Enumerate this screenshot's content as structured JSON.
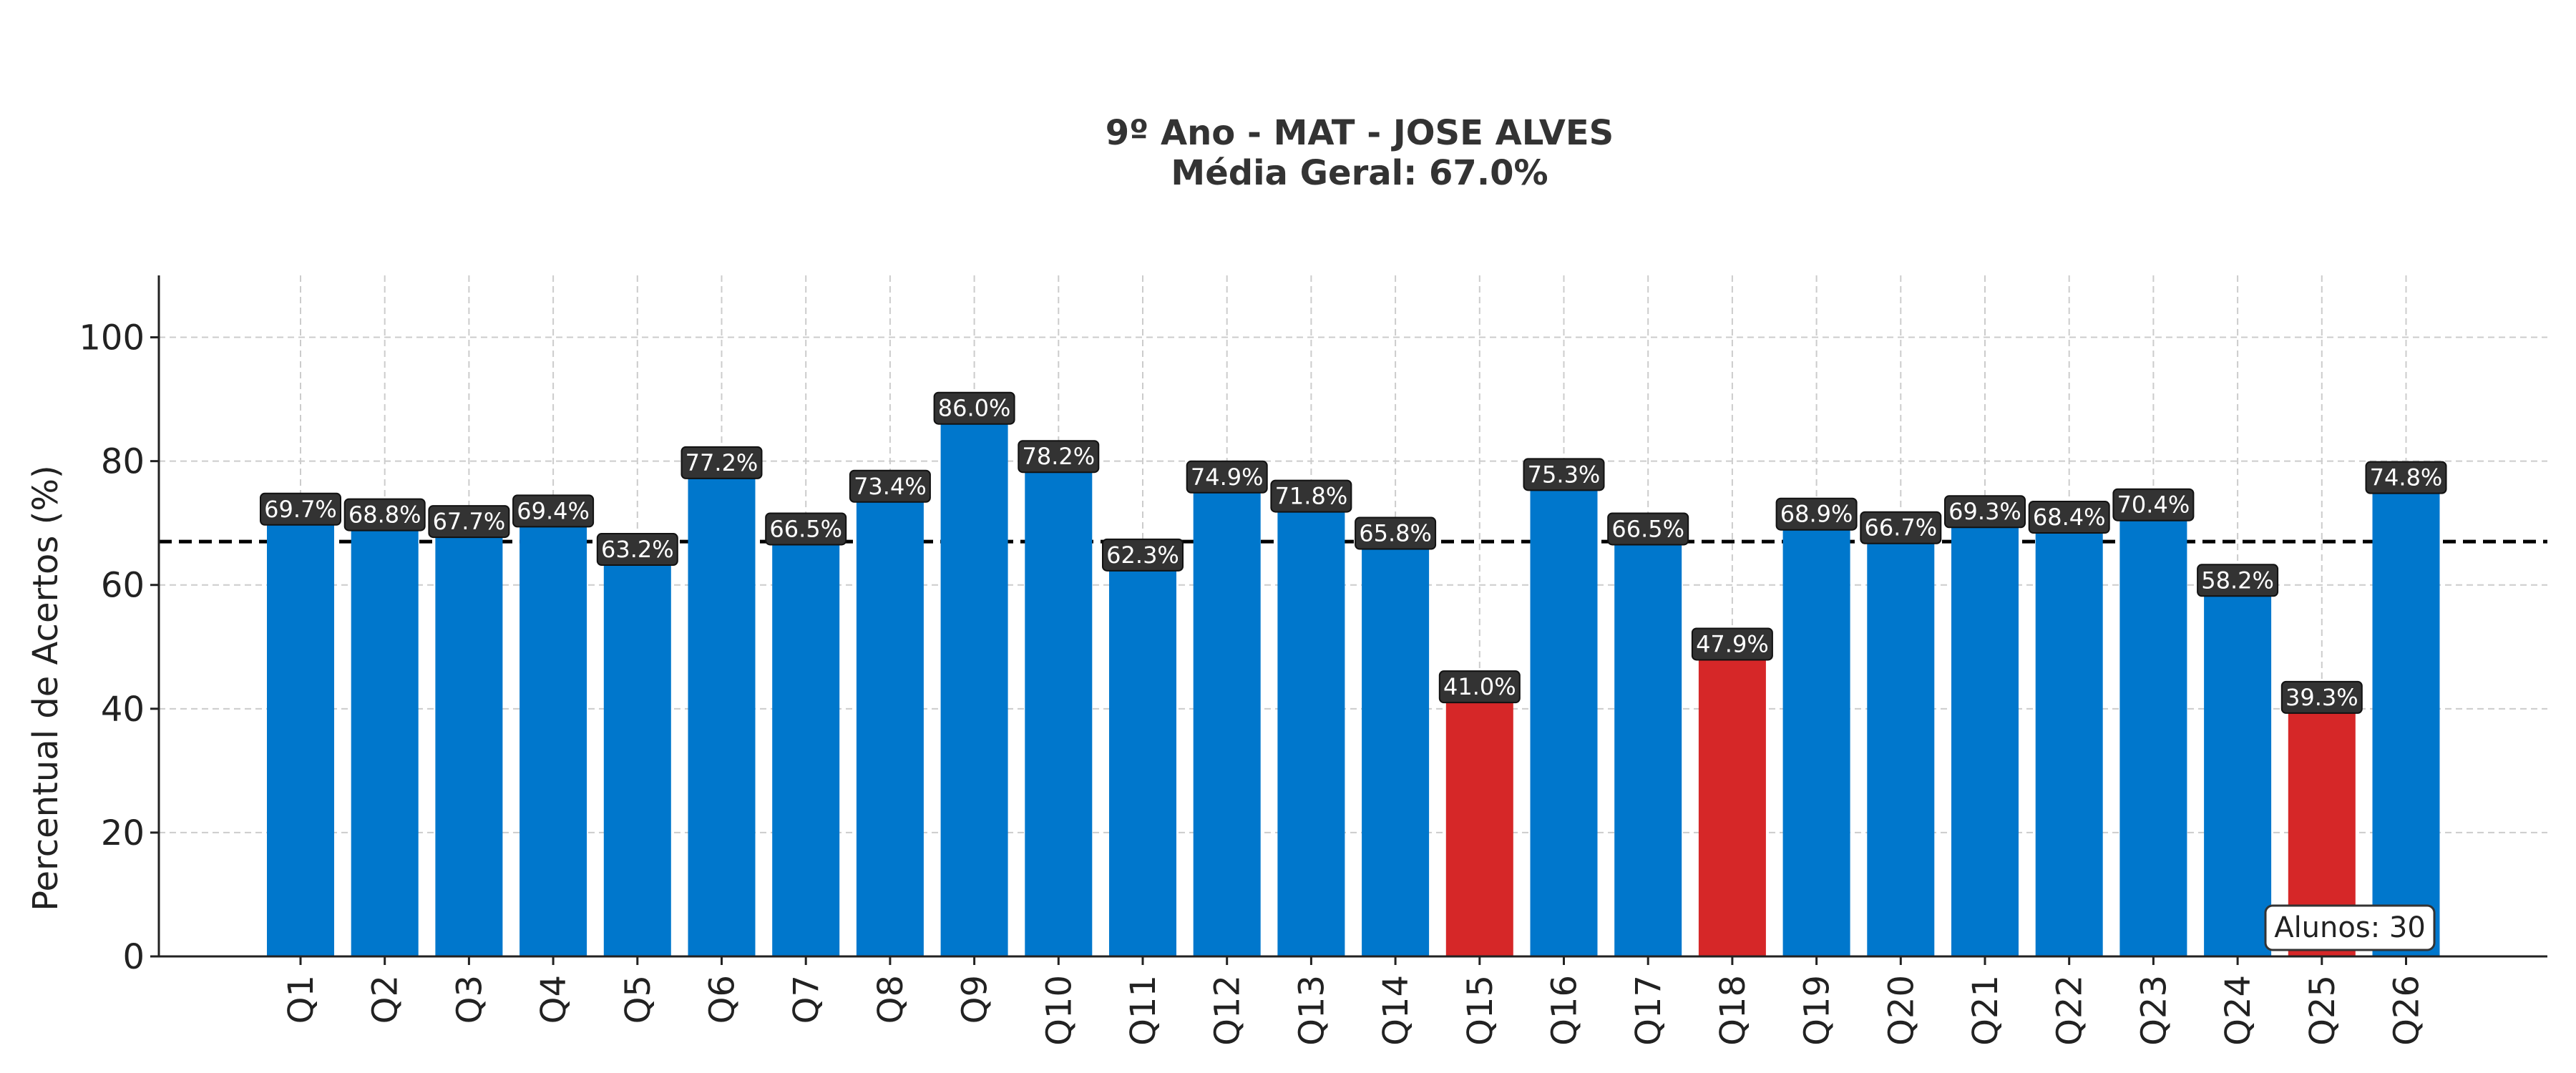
{
  "chart_data": {
    "type": "bar",
    "title_line1": "9º Ano - MAT - JOSE ALVES",
    "title_line2": "Média Geral: 67.0%",
    "xlabel": "",
    "ylabel": "Percentual de Acertos (%)",
    "ylim": [
      0,
      110
    ],
    "yticks": [
      0,
      20,
      40,
      60,
      80,
      100
    ],
    "grid": true,
    "categories": [
      "Q1",
      "Q2",
      "Q3",
      "Q4",
      "Q5",
      "Q6",
      "Q7",
      "Q8",
      "Q9",
      "Q10",
      "Q11",
      "Q12",
      "Q13",
      "Q14",
      "Q15",
      "Q16",
      "Q17",
      "Q18",
      "Q19",
      "Q20",
      "Q21",
      "Q22",
      "Q23",
      "Q24",
      "Q25",
      "Q26"
    ],
    "values": [
      69.7,
      68.8,
      67.7,
      69.4,
      63.2,
      77.2,
      66.5,
      73.4,
      86.0,
      78.2,
      62.3,
      74.9,
      71.8,
      65.8,
      41.0,
      75.3,
      66.5,
      47.9,
      68.9,
      66.7,
      69.3,
      68.4,
      70.4,
      58.2,
      39.3,
      74.8
    ],
    "data_labels": [
      "69.7%",
      "68.8%",
      "67.7%",
      "69.4%",
      "63.2%",
      "77.2%",
      "66.5%",
      "73.4%",
      "86.0%",
      "78.2%",
      "62.3%",
      "74.9%",
      "71.8%",
      "65.8%",
      "41.0%",
      "75.3%",
      "66.5%",
      "47.9%",
      "68.9%",
      "66.7%",
      "69.3%",
      "68.4%",
      "70.4%",
      "58.2%",
      "39.3%",
      "74.8%"
    ],
    "average_line": 67.0,
    "low_threshold": 50,
    "colors": {
      "normal_bar": "#0077cc",
      "low_bar": "#d62728",
      "label_bg": "#333333",
      "average_line": "#000000",
      "grid": "#cccccc"
    },
    "annotation": "Alunos: 30"
  }
}
